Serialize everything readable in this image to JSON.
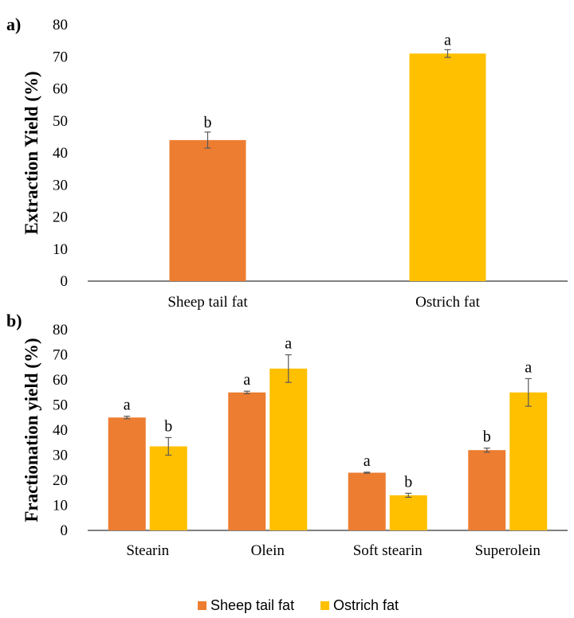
{
  "colors": {
    "sheep": "#ED7D31",
    "ostrich": "#FFC000",
    "axis": "#000000",
    "error": "#595959"
  },
  "chart_data": [
    {
      "type": "bar",
      "panel_label": "a)",
      "ylabel": "Extraction Yield (%)",
      "ylim": [
        0,
        80
      ],
      "yticks": [
        0,
        10,
        20,
        30,
        40,
        50,
        60,
        70,
        80
      ],
      "categories": [
        "Sheep tail fat",
        "Ostrich fat"
      ],
      "values": [
        44,
        71
      ],
      "errors": [
        2.5,
        1.2
      ],
      "letters": [
        "b",
        "a"
      ],
      "bar_colors": [
        "#ED7D31",
        "#FFC000"
      ]
    },
    {
      "type": "bar",
      "panel_label": "b)",
      "ylabel": "Fractionation yield (%)",
      "ylim": [
        0,
        80
      ],
      "yticks": [
        0,
        10,
        20,
        30,
        40,
        50,
        60,
        70,
        80
      ],
      "categories": [
        "Stearin",
        "Olein",
        "Soft stearin",
        "Superolein"
      ],
      "series": [
        {
          "name": "Sheep tail fat",
          "values": [
            45,
            55,
            23,
            32
          ],
          "errors": [
            0.5,
            0.5,
            0.2,
            0.8
          ],
          "letters": [
            "a",
            "a",
            "a",
            "b"
          ]
        },
        {
          "name": "Ostrich fat",
          "values": [
            33.5,
            64.5,
            14,
            55
          ],
          "errors": [
            3.5,
            5.5,
            0.8,
            5.5
          ],
          "letters": [
            "b",
            "a",
            "b",
            "a"
          ]
        }
      ],
      "legend": {
        "placement": "bottom-center"
      }
    }
  ]
}
